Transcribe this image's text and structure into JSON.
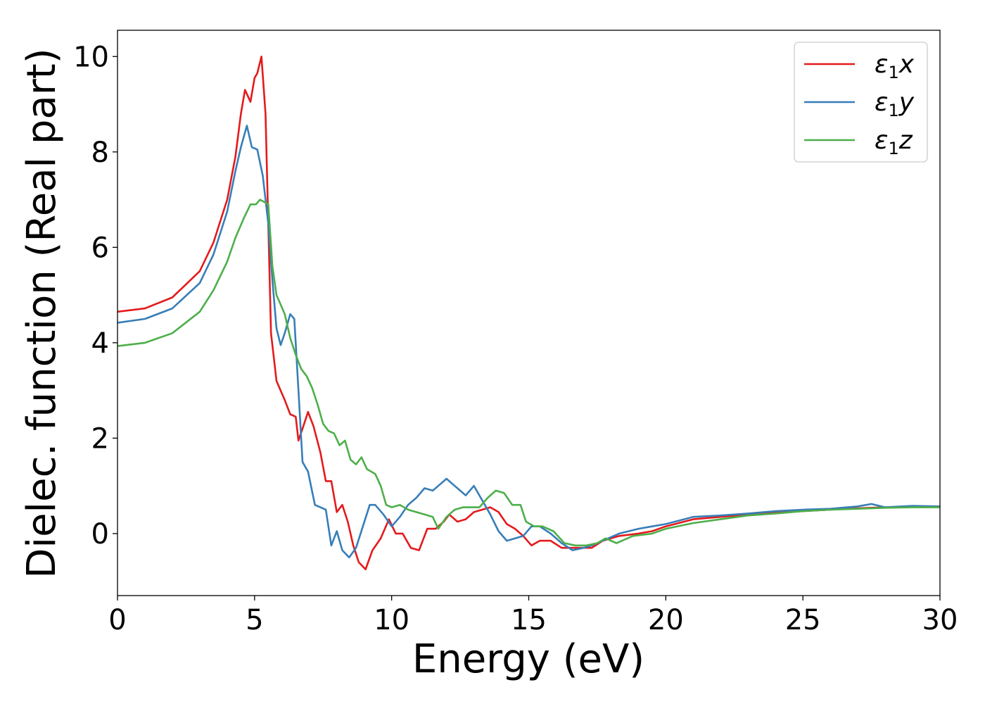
{
  "chart_data": {
    "type": "line",
    "xlabel": "Energy (eV)",
    "ylabel": "Dielec. function (Real part)",
    "xlim": [
      0,
      30
    ],
    "ylim": [
      -1.3,
      10.55
    ],
    "xticks": [
      0,
      5,
      10,
      15,
      20,
      25,
      30
    ],
    "yticks": [
      0,
      2,
      4,
      6,
      8,
      10
    ],
    "grid": false,
    "legend_position": "top-right",
    "series": [
      {
        "name": "ε₁x",
        "legend_base": "ε",
        "legend_sub": "1",
        "legend_var": "x",
        "color": "#e41a1c",
        "points": [
          [
            0,
            4.65
          ],
          [
            1,
            4.72
          ],
          [
            2,
            4.95
          ],
          [
            3,
            5.5
          ],
          [
            3.5,
            6.1
          ],
          [
            4,
            7.0
          ],
          [
            4.3,
            7.9
          ],
          [
            4.5,
            8.8
          ],
          [
            4.65,
            9.3
          ],
          [
            4.85,
            9.05
          ],
          [
            5.0,
            9.55
          ],
          [
            5.1,
            9.65
          ],
          [
            5.25,
            10.0
          ],
          [
            5.4,
            8.8
          ],
          [
            5.5,
            6.5
          ],
          [
            5.6,
            4.2
          ],
          [
            5.8,
            3.2
          ],
          [
            6.1,
            2.8
          ],
          [
            6.3,
            2.5
          ],
          [
            6.5,
            2.45
          ],
          [
            6.6,
            1.95
          ],
          [
            6.75,
            2.2
          ],
          [
            6.95,
            2.55
          ],
          [
            7.15,
            2.25
          ],
          [
            7.4,
            1.7
          ],
          [
            7.6,
            1.1
          ],
          [
            7.8,
            1.1
          ],
          [
            8.0,
            0.45
          ],
          [
            8.2,
            0.6
          ],
          [
            8.4,
            0.25
          ],
          [
            8.6,
            -0.25
          ],
          [
            8.8,
            -0.6
          ],
          [
            9.05,
            -0.75
          ],
          [
            9.3,
            -0.35
          ],
          [
            9.6,
            -0.1
          ],
          [
            9.9,
            0.3
          ],
          [
            10.15,
            0.0
          ],
          [
            10.4,
            0.0
          ],
          [
            10.7,
            -0.3
          ],
          [
            11.0,
            -0.35
          ],
          [
            11.3,
            0.1
          ],
          [
            11.6,
            0.1
          ],
          [
            11.9,
            0.25
          ],
          [
            12.1,
            0.4
          ],
          [
            12.4,
            0.25
          ],
          [
            12.7,
            0.3
          ],
          [
            13.0,
            0.45
          ],
          [
            13.3,
            0.5
          ],
          [
            13.6,
            0.55
          ],
          [
            13.9,
            0.45
          ],
          [
            14.2,
            0.2
          ],
          [
            14.5,
            0.1
          ],
          [
            14.8,
            -0.05
          ],
          [
            15.1,
            -0.25
          ],
          [
            15.4,
            -0.15
          ],
          [
            15.8,
            -0.15
          ],
          [
            16.2,
            -0.3
          ],
          [
            16.6,
            -0.3
          ],
          [
            17.0,
            -0.3
          ],
          [
            17.3,
            -0.3
          ],
          [
            17.7,
            -0.15
          ],
          [
            18.3,
            -0.05
          ],
          [
            19.0,
            0.0
          ],
          [
            19.5,
            0.05
          ],
          [
            20.0,
            0.15
          ],
          [
            21.0,
            0.3
          ],
          [
            22.0,
            0.35
          ],
          [
            23.0,
            0.4
          ],
          [
            24.0,
            0.45
          ],
          [
            25.0,
            0.47
          ],
          [
            26.0,
            0.5
          ],
          [
            27.0,
            0.53
          ],
          [
            28.0,
            0.55
          ],
          [
            29.0,
            0.57
          ],
          [
            30.0,
            0.57
          ]
        ]
      },
      {
        "name": "ε₁y",
        "legend_base": "ε",
        "legend_sub": "1",
        "legend_var": "y",
        "color": "#377eb8",
        "points": [
          [
            0,
            4.42
          ],
          [
            1,
            4.5
          ],
          [
            2,
            4.72
          ],
          [
            3,
            5.25
          ],
          [
            3.5,
            5.85
          ],
          [
            4,
            6.75
          ],
          [
            4.3,
            7.6
          ],
          [
            4.5,
            8.1
          ],
          [
            4.72,
            8.55
          ],
          [
            4.9,
            8.1
          ],
          [
            5.1,
            8.05
          ],
          [
            5.3,
            7.5
          ],
          [
            5.5,
            6.5
          ],
          [
            5.65,
            5.3
          ],
          [
            5.8,
            4.3
          ],
          [
            5.95,
            3.95
          ],
          [
            6.1,
            4.2
          ],
          [
            6.3,
            4.6
          ],
          [
            6.45,
            4.5
          ],
          [
            6.6,
            3.0
          ],
          [
            6.75,
            1.5
          ],
          [
            6.95,
            1.3
          ],
          [
            7.2,
            0.6
          ],
          [
            7.4,
            0.55
          ],
          [
            7.6,
            0.5
          ],
          [
            7.8,
            -0.25
          ],
          [
            8.0,
            0.05
          ],
          [
            8.2,
            -0.35
          ],
          [
            8.45,
            -0.5
          ],
          [
            8.7,
            -0.3
          ],
          [
            8.95,
            0.15
          ],
          [
            9.2,
            0.6
          ],
          [
            9.4,
            0.6
          ],
          [
            9.7,
            0.4
          ],
          [
            10.0,
            0.15
          ],
          [
            10.3,
            0.35
          ],
          [
            10.6,
            0.6
          ],
          [
            10.9,
            0.75
          ],
          [
            11.2,
            0.95
          ],
          [
            11.5,
            0.9
          ],
          [
            11.8,
            1.05
          ],
          [
            12.0,
            1.15
          ],
          [
            12.2,
            1.05
          ],
          [
            12.5,
            0.9
          ],
          [
            12.7,
            0.8
          ],
          [
            13.0,
            1.0
          ],
          [
            13.3,
            0.7
          ],
          [
            13.6,
            0.4
          ],
          [
            13.9,
            0.05
          ],
          [
            14.2,
            -0.15
          ],
          [
            14.5,
            -0.1
          ],
          [
            14.8,
            -0.05
          ],
          [
            15.1,
            0.15
          ],
          [
            15.4,
            0.15
          ],
          [
            15.8,
            0.0
          ],
          [
            16.2,
            -0.2
          ],
          [
            16.6,
            -0.35
          ],
          [
            17.0,
            -0.3
          ],
          [
            17.3,
            -0.25
          ],
          [
            17.7,
            -0.15
          ],
          [
            18.3,
            0.0
          ],
          [
            19.0,
            0.1
          ],
          [
            19.5,
            0.15
          ],
          [
            20.0,
            0.2
          ],
          [
            21.0,
            0.35
          ],
          [
            22.0,
            0.38
          ],
          [
            23.0,
            0.42
          ],
          [
            24.0,
            0.47
          ],
          [
            25.0,
            0.5
          ],
          [
            26.0,
            0.52
          ],
          [
            27.0,
            0.57
          ],
          [
            27.5,
            0.62
          ],
          [
            28.0,
            0.55
          ],
          [
            29.0,
            0.58
          ],
          [
            30.0,
            0.57
          ]
        ]
      },
      {
        "name": "ε₁z",
        "legend_base": "ε",
        "legend_sub": "1",
        "legend_var": "z",
        "color": "#4daf4a",
        "points": [
          [
            0,
            3.93
          ],
          [
            1,
            4.0
          ],
          [
            2,
            4.2
          ],
          [
            3,
            4.65
          ],
          [
            3.5,
            5.1
          ],
          [
            4,
            5.7
          ],
          [
            4.3,
            6.2
          ],
          [
            4.6,
            6.6
          ],
          [
            4.85,
            6.9
          ],
          [
            5.05,
            6.9
          ],
          [
            5.2,
            7.0
          ],
          [
            5.35,
            6.95
          ],
          [
            5.5,
            6.9
          ],
          [
            5.65,
            5.6
          ],
          [
            5.8,
            5.0
          ],
          [
            5.95,
            4.8
          ],
          [
            6.1,
            4.6
          ],
          [
            6.3,
            4.1
          ],
          [
            6.5,
            3.75
          ],
          [
            6.7,
            3.45
          ],
          [
            6.9,
            3.3
          ],
          [
            7.1,
            3.05
          ],
          [
            7.3,
            2.7
          ],
          [
            7.5,
            2.3
          ],
          [
            7.7,
            2.15
          ],
          [
            7.9,
            2.1
          ],
          [
            8.1,
            1.85
          ],
          [
            8.3,
            1.95
          ],
          [
            8.5,
            1.55
          ],
          [
            8.7,
            1.45
          ],
          [
            8.9,
            1.6
          ],
          [
            9.1,
            1.35
          ],
          [
            9.4,
            1.25
          ],
          [
            9.6,
            1.0
          ],
          [
            9.8,
            0.6
          ],
          [
            10.0,
            0.55
          ],
          [
            10.3,
            0.6
          ],
          [
            10.6,
            0.5
          ],
          [
            10.9,
            0.45
          ],
          [
            11.2,
            0.4
          ],
          [
            11.5,
            0.35
          ],
          [
            11.7,
            0.1
          ],
          [
            12.0,
            0.35
          ],
          [
            12.3,
            0.5
          ],
          [
            12.6,
            0.55
          ],
          [
            12.9,
            0.55
          ],
          [
            13.2,
            0.55
          ],
          [
            13.5,
            0.75
          ],
          [
            13.8,
            0.9
          ],
          [
            14.1,
            0.85
          ],
          [
            14.4,
            0.6
          ],
          [
            14.7,
            0.6
          ],
          [
            14.9,
            0.25
          ],
          [
            15.2,
            0.15
          ],
          [
            15.5,
            0.15
          ],
          [
            15.9,
            0.05
          ],
          [
            16.3,
            -0.2
          ],
          [
            16.7,
            -0.25
          ],
          [
            17.1,
            -0.25
          ],
          [
            17.5,
            -0.2
          ],
          [
            17.8,
            -0.1
          ],
          [
            18.2,
            -0.2
          ],
          [
            18.8,
            -0.05
          ],
          [
            19.5,
            0.0
          ],
          [
            20.0,
            0.1
          ],
          [
            21.0,
            0.22
          ],
          [
            22.0,
            0.3
          ],
          [
            23.0,
            0.38
          ],
          [
            24.0,
            0.42
          ],
          [
            25.0,
            0.47
          ],
          [
            26.0,
            0.5
          ],
          [
            27.0,
            0.52
          ],
          [
            28.0,
            0.54
          ],
          [
            29.0,
            0.55
          ],
          [
            30.0,
            0.55
          ]
        ]
      }
    ]
  }
}
